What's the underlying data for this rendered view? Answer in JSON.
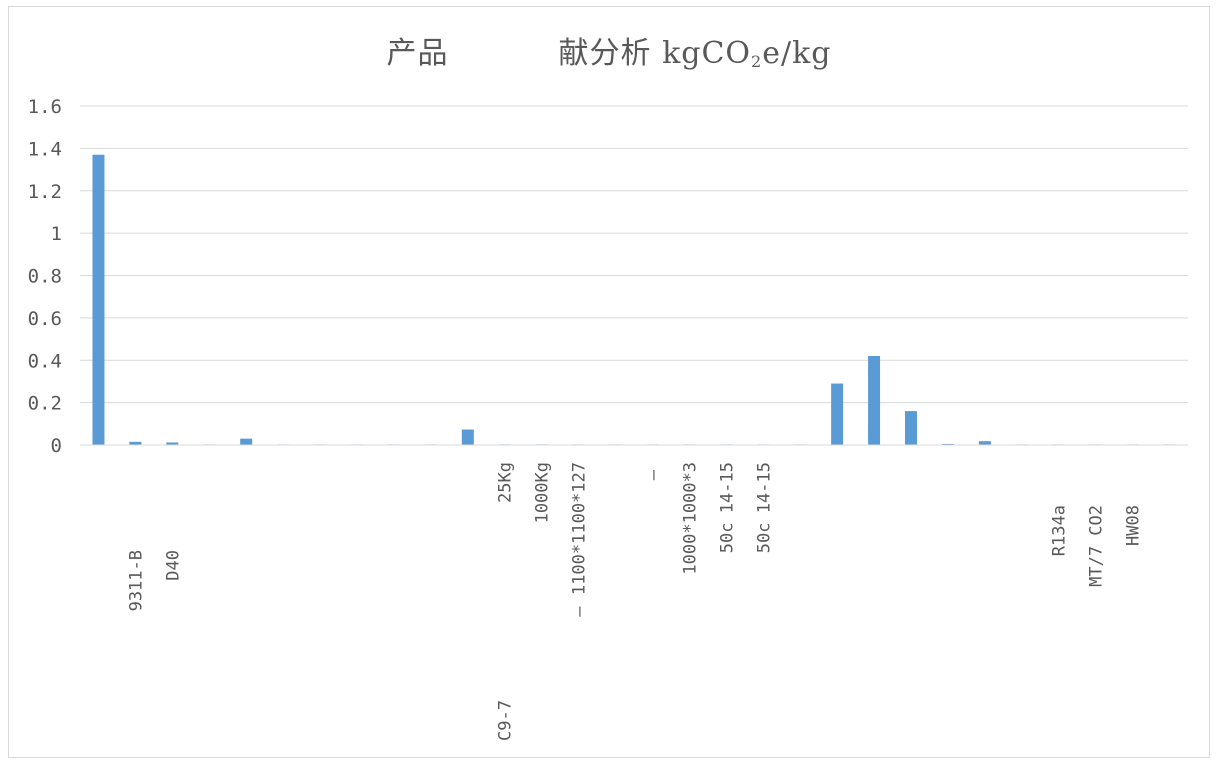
{
  "chart_data": {
    "type": "bar",
    "title": {
      "part1": "产品",
      "part2": "献分析 kgCO",
      "sub": "2",
      "part3": "e/kg"
    },
    "xlabel": "",
    "ylabel": "",
    "ylim": [
      0,
      1.6
    ],
    "yticks": [
      "0",
      "0.2",
      "0.4",
      "0.6",
      "0.8",
      "1",
      "1.2",
      "1.4",
      "1.6"
    ],
    "grid": true,
    "legend": "none",
    "bar_color": "#5b9bd5",
    "categories": [
      "",
      "9311-B",
      "D40",
      "",
      "",
      "",
      "",
      "",
      "",
      "",
      "",
      "25Kg",
      "1000Kg",
      "1100*1100*127",
      "",
      "",
      "1000*1000*3",
      "14-15",
      "14-15",
      "",
      "",
      "",
      "",
      "",
      "",
      "",
      "R134a",
      "MT/7 CO2",
      "HW08",
      ""
    ],
    "extra_labels": [
      {
        "category_index": 11,
        "text": "C9-7",
        "position": "far-below"
      },
      {
        "category_index": 13,
        "text": "—",
        "position": "below-label"
      },
      {
        "category_index": 15,
        "text": "—",
        "position": "below-label"
      },
      {
        "category_index": 17,
        "text": "50c",
        "position": "below-label"
      },
      {
        "category_index": 18,
        "text": "50c",
        "position": "below-label"
      }
    ],
    "values": [
      1.37,
      0.015,
      0.012,
      0.001,
      0.03,
      0.002,
      0.001,
      0.001,
      0.001,
      0.001,
      0.073,
      0.003,
      0.003,
      0.002,
      0.002,
      0.002,
      0.002,
      0.002,
      0.001,
      0.001,
      0.29,
      0.42,
      0.16,
      0.005,
      0.018,
      0.002,
      0.002,
      0.001,
      0.001,
      0.001
    ]
  }
}
